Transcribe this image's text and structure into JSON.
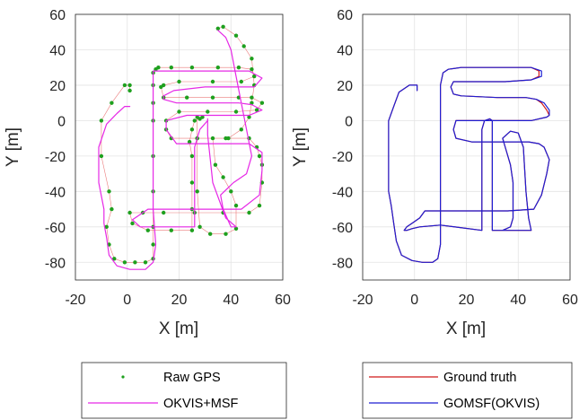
{
  "chart_data": [
    {
      "type": "line",
      "xlabel": "X [m]",
      "ylabel": "Y [m]",
      "xlim": [
        -20,
        60
      ],
      "ylim": [
        -90,
        60
      ],
      "xticks": [
        "-20",
        "0",
        "20",
        "40",
        "60"
      ],
      "yticks": [
        "60",
        "40",
        "20",
        "0",
        "-20",
        "-40",
        "-60",
        "-80"
      ],
      "grid": true,
      "legend_position": "below",
      "series": [
        {
          "name": "Raw GPS",
          "style": "scatter",
          "color": "#1ea01e",
          "x": [
            1,
            1,
            -1,
            -6,
            -10,
            -10,
            -7,
            -6,
            -8,
            -7,
            -5,
            -1,
            3,
            7,
            10,
            10,
            10,
            10,
            10,
            10,
            10,
            10,
            10,
            11,
            12,
            17,
            25,
            35,
            43,
            48,
            49,
            44,
            33,
            20,
            14,
            13,
            14,
            23,
            33,
            43,
            48,
            52,
            50,
            42,
            31,
            20,
            15,
            15,
            17,
            27,
            38,
            47,
            50,
            51,
            52,
            52,
            51,
            47,
            37,
            26,
            14,
            6,
            1,
            2,
            8,
            17,
            25,
            25,
            25,
            25,
            24,
            25,
            26,
            29,
            28,
            27,
            27,
            27,
            28,
            32,
            38,
            42,
            42,
            40,
            37,
            34,
            33,
            39,
            44,
            47,
            48,
            49,
            48,
            45,
            42,
            37,
            35
          ],
          "y": [
            17,
            20,
            20,
            10,
            0,
            -20,
            -40,
            -50,
            -60,
            -70,
            -78,
            -80,
            -80,
            -80,
            -78,
            -70,
            -60,
            -40,
            -20,
            0,
            10,
            20,
            27,
            29,
            30,
            30,
            30,
            30,
            30,
            29,
            25,
            22,
            22,
            22,
            20,
            19,
            13,
            13,
            13,
            13,
            13,
            10,
            6,
            5,
            5,
            5,
            0,
            -5,
            -10,
            -10,
            -10,
            -10,
            -15,
            -20,
            -25,
            -35,
            -48,
            -52,
            -52,
            -52,
            -52,
            -52,
            -52,
            -58,
            -62,
            -62,
            -62,
            -50,
            -35,
            -20,
            -12,
            -5,
            0,
            2,
            1,
            2,
            -10,
            -40,
            -60,
            -64,
            -64,
            -61,
            -48,
            -40,
            -32,
            -25,
            -10,
            -10,
            -5,
            2,
            10,
            20,
            35,
            42,
            48,
            53,
            52
          ]
        },
        {
          "name": "OKVIS+MSF",
          "style": "line",
          "color": "#e628e6",
          "x": [
            1,
            -1,
            -4,
            -8,
            -11,
            -11,
            -9,
            -9,
            -8,
            -7,
            -4,
            1,
            7,
            10,
            11,
            10,
            10,
            10,
            10,
            10,
            10,
            12,
            22,
            35,
            47,
            52,
            49,
            42,
            30,
            18,
            14,
            14,
            19,
            32,
            43,
            48,
            52,
            47,
            36,
            23,
            15,
            15,
            19,
            31,
            41,
            47,
            52,
            52,
            51,
            44,
            31,
            18,
            8,
            2,
            5,
            12,
            20,
            26,
            26,
            26,
            26,
            28,
            31,
            31,
            31,
            33,
            38,
            42,
            40,
            37,
            36,
            41,
            46,
            48,
            46,
            44,
            42,
            40,
            38,
            35
          ],
          "y": [
            8,
            8,
            4,
            -2,
            -15,
            -35,
            -50,
            -58,
            -66,
            -76,
            -82,
            -84,
            -84,
            -80,
            -70,
            -50,
            -30,
            -10,
            5,
            20,
            28,
            28,
            28,
            28,
            28,
            24,
            19,
            19,
            19,
            17,
            14,
            12,
            10,
            10,
            10,
            9,
            6,
            3,
            3,
            3,
            0,
            -5,
            -13,
            -13,
            -13,
            -13,
            -18,
            -28,
            -42,
            -50,
            -50,
            -50,
            -50,
            -56,
            -60,
            -60,
            -60,
            -60,
            -45,
            -30,
            -15,
            -5,
            0,
            1,
            -8,
            -35,
            -55,
            -60,
            -60,
            -50,
            -42,
            -35,
            -30,
            -20,
            -5,
            10,
            25,
            40,
            47,
            51
          ]
        }
      ]
    },
    {
      "type": "line",
      "xlabel": "X [m]",
      "ylabel": "Y [m]",
      "xlim": [
        -20,
        60
      ],
      "ylim": [
        -90,
        60
      ],
      "xticks": [
        "-20",
        "0",
        "20",
        "40",
        "60"
      ],
      "yticks": [
        "60",
        "40",
        "20",
        "0",
        "-20",
        "-40",
        "-60",
        "-80"
      ],
      "grid": true,
      "legend_position": "below",
      "series": [
        {
          "name": "Ground truth",
          "style": "line",
          "color": "#d11919",
          "x": [
            1,
            1,
            -2,
            -6,
            -8,
            -10,
            -10,
            -10,
            -10,
            -9,
            -8,
            -7,
            -5,
            -1,
            3,
            7,
            9,
            10,
            10,
            10,
            10,
            10,
            10,
            10,
            11,
            13,
            18,
            27,
            38,
            45,
            48,
            48,
            45,
            35,
            22,
            15,
            14,
            15,
            18,
            32,
            43,
            47,
            49,
            51,
            52,
            51,
            45,
            32,
            22,
            16,
            15,
            16,
            22,
            33,
            44,
            48,
            50,
            52,
            51,
            49,
            46,
            36,
            27,
            18,
            10,
            4,
            2,
            -1,
            -3,
            -4,
            -3,
            -1,
            2,
            10,
            26,
            26,
            26,
            26,
            26,
            26,
            27,
            29,
            30,
            30,
            30,
            30,
            30,
            34,
            37,
            38,
            38,
            38,
            37,
            35,
            34,
            37,
            40,
            42,
            43,
            44,
            45,
            44,
            40,
            33
          ],
          "y": [
            17,
            20,
            20,
            16,
            8,
            0,
            -10,
            -25,
            -40,
            -48,
            -58,
            -68,
            -76,
            -79,
            -80,
            -80,
            -78,
            -70,
            -55,
            -40,
            -20,
            0,
            10,
            20,
            27,
            29,
            30,
            30,
            30,
            30,
            28,
            25,
            23,
            22,
            22,
            22,
            19,
            15,
            14,
            13,
            13,
            12,
            10,
            6,
            3,
            2,
            0,
            0,
            0,
            0,
            -5,
            -10,
            -12,
            -12,
            -12,
            -13,
            -15,
            -22,
            -30,
            -42,
            -50,
            -51,
            -51,
            -51,
            -51,
            -51,
            -55,
            -58,
            -60,
            -62,
            -62,
            -61,
            -60,
            -59,
            -62,
            -58,
            -45,
            -30,
            -15,
            -5,
            0,
            1,
            0,
            -15,
            -35,
            -55,
            -62,
            -62,
            -60,
            -55,
            -45,
            -35,
            -25,
            -15,
            -10,
            -6,
            -7,
            -15,
            -40,
            -55,
            -62,
            -62,
            -62,
            -62
          ]
        },
        {
          "name": "GOMSF(OKVIS)",
          "style": "line",
          "color": "#1e1ed2",
          "x": [
            1,
            1,
            -2,
            -6,
            -8,
            -10,
            -10,
            -10,
            -10,
            -9,
            -8,
            -7,
            -5,
            -1,
            3,
            7,
            9,
            10,
            10,
            10,
            10,
            10,
            10,
            10,
            11,
            13,
            18,
            27,
            38,
            45,
            49,
            49,
            45,
            35,
            22,
            15,
            14,
            15,
            18,
            32,
            43,
            47,
            50,
            52,
            52,
            51,
            45,
            32,
            22,
            16,
            15,
            16,
            22,
            33,
            44,
            48,
            50,
            52,
            51,
            49,
            46,
            36,
            27,
            18,
            10,
            4,
            2,
            -1,
            -3,
            -4,
            -3,
            -1,
            2,
            10,
            26,
            26,
            26,
            26,
            26,
            26,
            27,
            29,
            30,
            30,
            30,
            30,
            30,
            34,
            37,
            38,
            38,
            38,
            37,
            35,
            34,
            37,
            40,
            42,
            43,
            44,
            45,
            44,
            40,
            33
          ],
          "y": [
            17,
            20,
            20,
            16,
            8,
            0,
            -10,
            -25,
            -40,
            -48,
            -58,
            -68,
            -76,
            -79,
            -80,
            -80,
            -78,
            -70,
            -55,
            -40,
            -20,
            0,
            10,
            20,
            27,
            29,
            30,
            30,
            30,
            30,
            28,
            25,
            23,
            22,
            22,
            22,
            19,
            15,
            14,
            13,
            13,
            12,
            10,
            6,
            3,
            2,
            0,
            0,
            0,
            0,
            -5,
            -10,
            -12,
            -12,
            -12,
            -13,
            -15,
            -22,
            -30,
            -42,
            -50,
            -51,
            -51,
            -51,
            -51,
            -51,
            -55,
            -58,
            -60,
            -62,
            -62,
            -61,
            -60,
            -59,
            -62,
            -58,
            -45,
            -30,
            -15,
            -5,
            0,
            1,
            0,
            -15,
            -35,
            -55,
            -62,
            -62,
            -60,
            -55,
            -45,
            -35,
            -25,
            -15,
            -10,
            -6,
            -7,
            -15,
            -40,
            -55,
            -62,
            -62,
            -62,
            -62
          ]
        }
      ]
    }
  ]
}
